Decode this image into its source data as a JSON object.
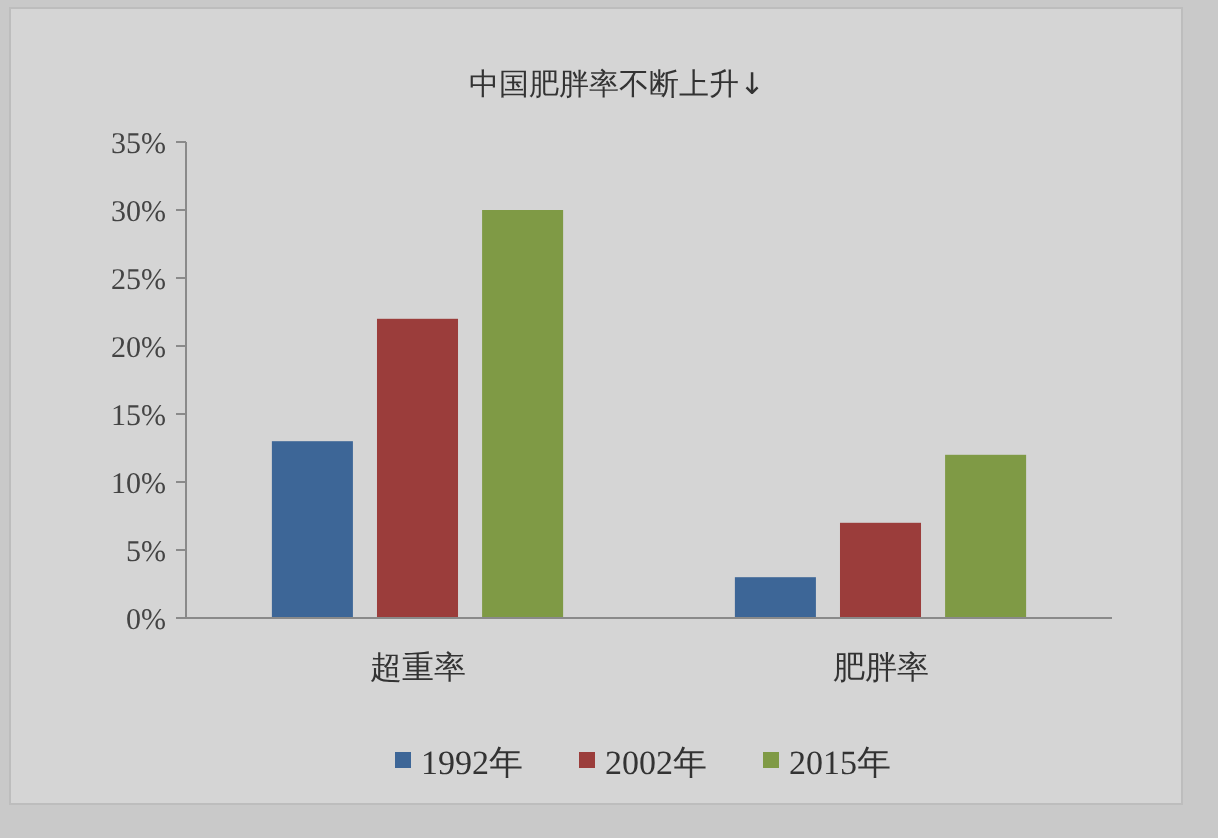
{
  "chart_data": {
    "type": "bar",
    "title": "中国肥胖率不断上升↓",
    "categories": [
      "超重率",
      "肥胖率"
    ],
    "series": [
      {
        "name": "1992年",
        "color": "#3d6697",
        "values": [
          13,
          3
        ]
      },
      {
        "name": "2002年",
        "color": "#9b3d3b",
        "values": [
          22,
          7
        ]
      },
      {
        "name": "2015年",
        "color": "#7f9a45",
        "values": [
          30,
          12
        ]
      }
    ],
    "ylim": [
      0,
      35
    ],
    "yticks": [
      {
        "value": 0,
        "label": "0%"
      },
      {
        "value": 5,
        "label": "5%"
      },
      {
        "value": 10,
        "label": "10%"
      },
      {
        "value": 15,
        "label": "15%"
      },
      {
        "value": 20,
        "label": "20%"
      },
      {
        "value": 25,
        "label": "25%"
      },
      {
        "value": 30,
        "label": "30%"
      },
      {
        "value": 35,
        "label": "35%"
      }
    ],
    "legend": "bottom"
  }
}
